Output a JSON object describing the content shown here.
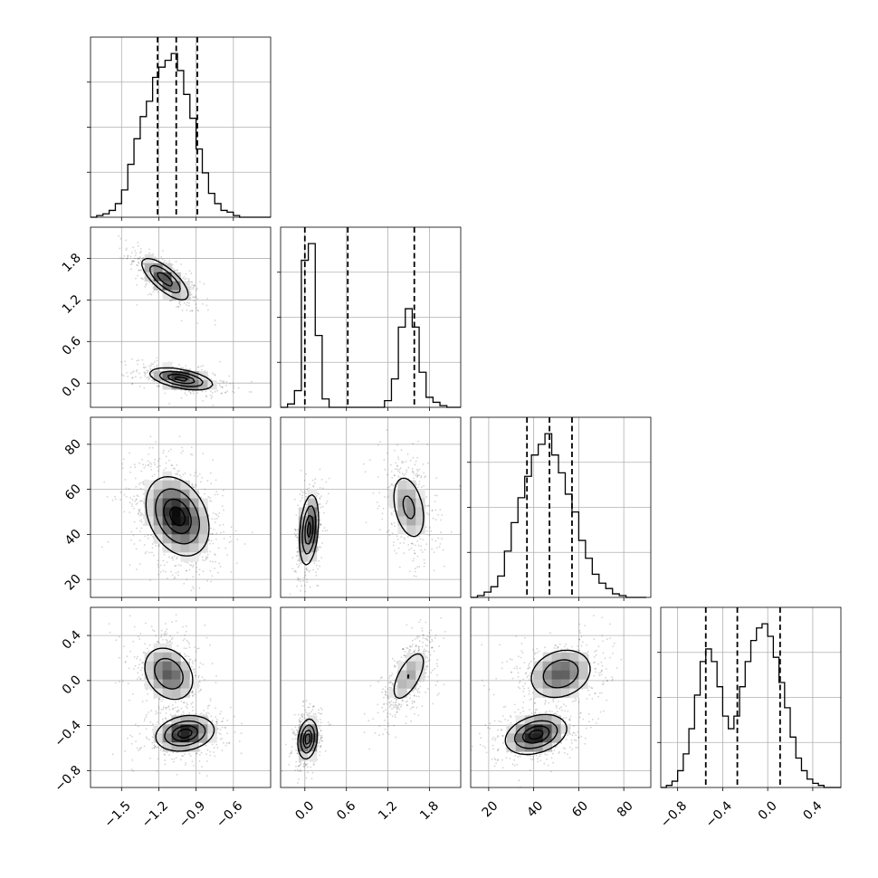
{
  "chart_data": {
    "type": "corner",
    "parameters": [
      {
        "range": [
          -1.75,
          -0.3
        ],
        "ticks": [
          -1.5,
          -1.2,
          -0.9,
          -0.6
        ],
        "tick_labels": [
          "−1.5",
          "−1.2",
          "−0.9",
          "−0.6"
        ],
        "quantiles": [
          -1.21,
          -1.06,
          -0.89
        ]
      },
      {
        "range": [
          -0.35,
          2.25
        ],
        "ticks": [
          0.0,
          0.6,
          1.2,
          1.8
        ],
        "tick_labels": [
          "0.0",
          "0.6",
          "1.2",
          "1.8"
        ],
        "quantiles": [
          0.0,
          0.62,
          1.58
        ]
      },
      {
        "range": [
          12,
          92
        ],
        "ticks": [
          20,
          40,
          60,
          80
        ],
        "tick_labels": [
          "20",
          "40",
          "60",
          "80"
        ],
        "quantiles": [
          37,
          47,
          57
        ]
      },
      {
        "range": [
          -0.95,
          0.65
        ],
        "ticks": [
          -0.8,
          -0.4,
          0.0,
          0.4
        ],
        "tick_labels": [
          "−0.8",
          "−0.4",
          "0.0",
          "0.4"
        ],
        "quantiles": [
          -0.55,
          -0.27,
          0.11
        ]
      }
    ],
    "histograms": [
      {
        "bins": [
          -1.75,
          -1.7,
          -1.65,
          -1.6,
          -1.55,
          -1.5,
          -1.45,
          -1.4,
          -1.35,
          -1.3,
          -1.25,
          -1.2,
          -1.15,
          -1.1,
          -1.05,
          -1.0,
          -0.95,
          -0.9,
          -0.85,
          -0.8,
          -0.75,
          -0.7,
          -0.65,
          -0.6,
          -0.55,
          -0.5,
          -0.45,
          -0.4,
          -0.35,
          -0.3
        ],
        "counts": [
          0,
          1,
          2,
          4,
          8,
          16,
          31,
          46,
          59,
          68,
          82,
          88,
          92,
          96,
          86,
          72,
          58,
          40,
          26,
          14,
          8,
          4,
          3,
          1,
          0,
          0,
          0,
          0,
          0
        ]
      },
      {
        "bins": [
          -0.35,
          -0.25,
          -0.15,
          -0.05,
          0.05,
          0.15,
          0.25,
          0.35,
          0.45,
          0.55,
          0.65,
          0.75,
          0.85,
          0.95,
          1.05,
          1.15,
          1.25,
          1.35,
          1.45,
          1.55,
          1.65,
          1.75,
          1.85,
          1.95,
          2.05,
          2.15,
          2.25
        ],
        "counts": [
          0,
          2,
          10,
          88,
          98,
          43,
          5,
          0,
          0,
          0,
          0,
          0,
          0,
          0,
          0,
          4,
          17,
          48,
          59,
          48,
          21,
          6,
          3,
          1,
          0,
          0
        ]
      },
      {
        "bins": [
          12,
          15,
          18,
          21,
          24,
          27,
          30,
          33,
          36,
          39,
          42,
          45,
          48,
          51,
          54,
          57,
          60,
          63,
          66,
          69,
          72,
          75,
          78,
          81,
          84,
          87,
          90
        ],
        "counts": [
          0,
          1,
          3,
          6,
          12,
          26,
          42,
          56,
          68,
          80,
          86,
          92,
          80,
          70,
          58,
          48,
          32,
          22,
          13,
          8,
          5,
          2,
          1,
          0,
          0,
          0
        ]
      },
      {
        "bins": [
          -0.95,
          -0.9,
          -0.85,
          -0.8,
          -0.75,
          -0.7,
          -0.65,
          -0.6,
          -0.55,
          -0.5,
          -0.45,
          -0.4,
          -0.35,
          -0.3,
          -0.25,
          -0.2,
          -0.15,
          -0.1,
          -0.05,
          0.0,
          0.05,
          0.1,
          0.15,
          0.2,
          0.25,
          0.3,
          0.35,
          0.4,
          0.45,
          0.5,
          0.55,
          0.6,
          0.65
        ],
        "counts": [
          0,
          1,
          3,
          8,
          16,
          28,
          44,
          60,
          66,
          60,
          48,
          34,
          28,
          34,
          48,
          60,
          70,
          76,
          78,
          72,
          62,
          50,
          38,
          24,
          14,
          8,
          4,
          2,
          1,
          0,
          0,
          0
        ]
      }
    ],
    "pairs": [
      {
        "x": 0,
        "y": 1,
        "modes": [
          {
            "mx": -1.15,
            "my": 1.5,
            "sx": 0.1,
            "sy": 0.16,
            "rho": -0.75,
            "w": 0.5
          },
          {
            "mx": -1.02,
            "my": 0.06,
            "sx": 0.13,
            "sy": 0.08,
            "rho": -0.5,
            "w": 0.5
          }
        ]
      },
      {
        "x": 0,
        "y": 2,
        "modes": [
          {
            "mx": -1.05,
            "my": 48,
            "sx": 0.13,
            "sy": 9,
            "rho": -0.3,
            "w": 1.0
          }
        ]
      },
      {
        "x": 1,
        "y": 2,
        "modes": [
          {
            "mx": 0.06,
            "my": 42,
            "sx": 0.07,
            "sy": 8,
            "rho": 0.3,
            "w": 0.5
          },
          {
            "mx": 1.5,
            "my": 52,
            "sx": 0.14,
            "sy": 8.5,
            "rho": -0.35,
            "w": 0.5
          }
        ]
      },
      {
        "x": 0,
        "y": 3,
        "modes": [
          {
            "mx": -1.12,
            "my": 0.06,
            "sx": 0.11,
            "sy": 0.13,
            "rho": -0.25,
            "w": 0.5
          },
          {
            "mx": -0.99,
            "my": -0.47,
            "sx": 0.12,
            "sy": 0.08,
            "rho": 0.2,
            "w": 0.5
          }
        ]
      },
      {
        "x": 1,
        "y": 3,
        "modes": [
          {
            "mx": 0.04,
            "my": -0.52,
            "sx": 0.07,
            "sy": 0.09,
            "rho": 0.2,
            "w": 0.5
          },
          {
            "mx": 1.5,
            "my": 0.04,
            "sx": 0.15,
            "sy": 0.14,
            "rho": 0.65,
            "w": 0.5
          }
        ]
      },
      {
        "x": 2,
        "y": 3,
        "modes": [
          {
            "mx": 52,
            "my": 0.06,
            "sx": 7.5,
            "sy": 0.12,
            "rho": 0.2,
            "w": 0.5
          },
          {
            "mx": 41,
            "my": -0.48,
            "sx": 7,
            "sy": 0.09,
            "rho": 0.3,
            "w": 0.5
          }
        ]
      }
    ],
    "grid": true
  }
}
